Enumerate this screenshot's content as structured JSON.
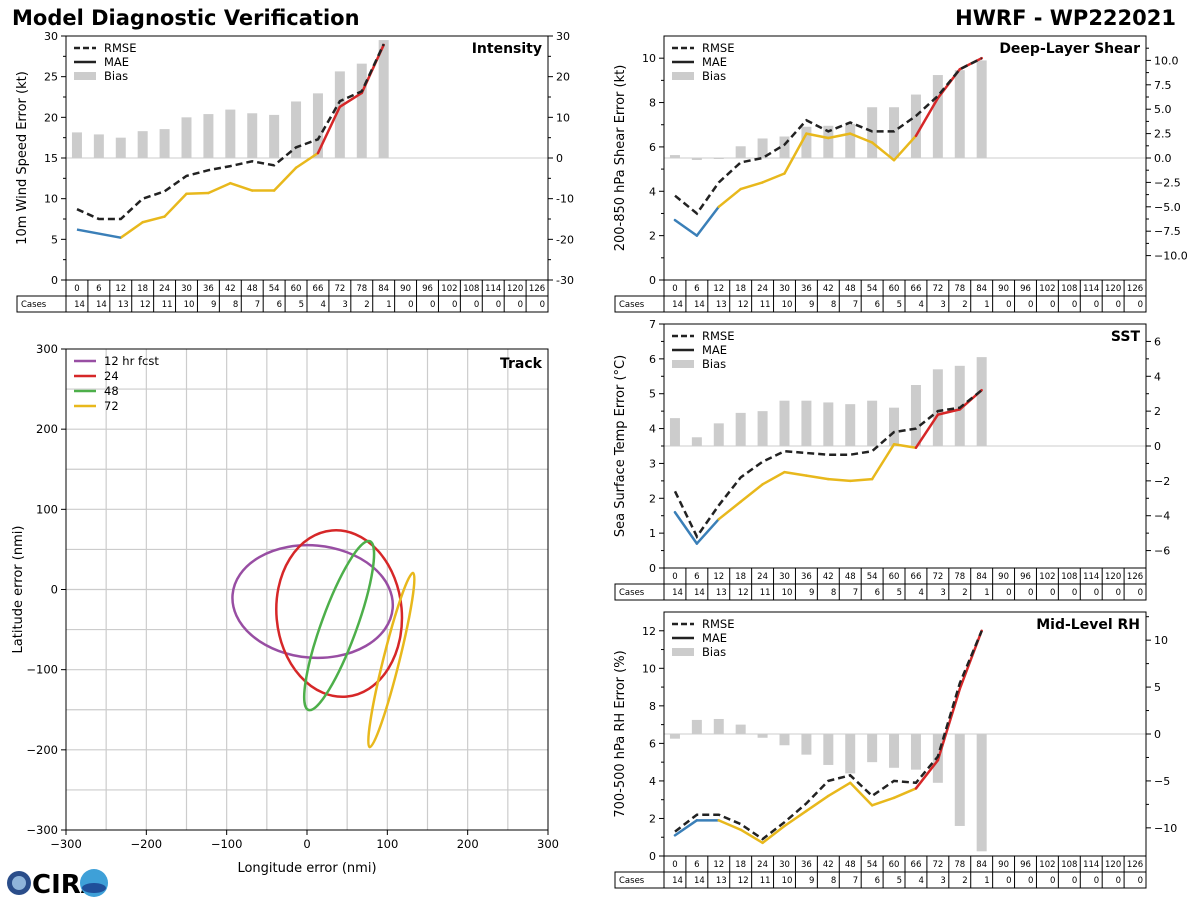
{
  "header": {
    "title": "Model Diagnostic Verification",
    "model_storm": "HWRF - WP222021"
  },
  "footer": {
    "logo_text": "CIRA"
  },
  "colors": {
    "rmse": "#222222",
    "mae_blue": "#3a7fb8",
    "mae_yellow": "#e8b81c",
    "mae_red": "#d62728",
    "bias": "#cccccc",
    "grid": "#cccccc",
    "track_12": "#984ea3",
    "track_24": "#d62728",
    "track_48": "#4daf4a",
    "track_72": "#e8b81c"
  },
  "table": {
    "hour_row_label": "",
    "cases_label": "Cases",
    "hours": [
      "0",
      "6",
      "12",
      "18",
      "24",
      "30",
      "36",
      "42",
      "48",
      "54",
      "60",
      "66",
      "72",
      "78",
      "84",
      "90",
      "96",
      "102",
      "108",
      "114",
      "120",
      "126"
    ],
    "cases": [
      "14",
      "14",
      "13",
      "12",
      "11",
      "10",
      "9",
      "8",
      "7",
      "6",
      "5",
      "4",
      "3",
      "2",
      "1",
      "0",
      "0",
      "0",
      "0",
      "0",
      "0",
      "0"
    ]
  },
  "legend_labels": {
    "rmse": "RMSE",
    "mae": "MAE",
    "bias": "Bias"
  },
  "chart_data": [
    {
      "type": "line",
      "title": "Intensity",
      "ylabel": "10m Wind Speed Error (kt)",
      "ylim": [
        0,
        30
      ],
      "yticks": [
        "0",
        "5",
        "10",
        "15",
        "20",
        "25",
        "30"
      ],
      "y2lim": [
        -30,
        30
      ],
      "y2ticks": [
        "-30",
        "-20",
        "-10",
        "0",
        "10",
        "20",
        "30"
      ],
      "x": [
        0,
        6,
        12,
        18,
        24,
        30,
        36,
        42,
        48,
        54,
        60,
        66,
        72,
        78,
        84
      ],
      "series": [
        {
          "name": "RMSE",
          "values": [
            8.7,
            7.5,
            7.5,
            10.0,
            10.9,
            12.8,
            13.5,
            14.0,
            14.6,
            14.1,
            16.3,
            17.3,
            22.0,
            23.2,
            29.0
          ]
        },
        {
          "name": "MAE",
          "values": [
            6.2,
            null,
            5.2,
            7.1,
            7.8,
            10.6,
            10.7,
            11.9,
            11.0,
            11.0,
            13.8,
            15.6,
            21.3,
            23.0,
            28.9
          ]
        },
        {
          "name": "Bias",
          "values": [
            6.3,
            5.8,
            5.0,
            6.6,
            7.1,
            10.0,
            10.8,
            11.9,
            11.0,
            10.6,
            13.9,
            15.9,
            21.3,
            23.2,
            29.0
          ]
        }
      ]
    },
    {
      "type": "line",
      "title": "Deep-Layer Shear",
      "ylabel": "200-850 hPa Shear Error (kt)",
      "ylim": [
        0,
        11
      ],
      "yticks": [
        "0",
        "2",
        "4",
        "6",
        "8",
        "10"
      ],
      "y2lim": [
        -12.5,
        12.5
      ],
      "y2ticks": [
        "−10.0",
        "−7.5",
        "−5.0",
        "−2.5",
        "0.0",
        "2.5",
        "5.0",
        "7.5",
        "10.0"
      ],
      "x": [
        0,
        6,
        12,
        18,
        24,
        30,
        36,
        42,
        48,
        54,
        60,
        66,
        72,
        78,
        84
      ],
      "series": [
        {
          "name": "RMSE",
          "values": [
            3.8,
            3.0,
            4.4,
            5.3,
            5.5,
            6.1,
            7.2,
            6.7,
            7.1,
            6.7,
            6.7,
            7.4,
            8.3,
            9.5,
            10.0
          ]
        },
        {
          "name": "MAE",
          "values": [
            2.7,
            2.0,
            3.3,
            4.1,
            4.4,
            4.8,
            6.6,
            6.4,
            6.6,
            6.2,
            5.4,
            6.5,
            8.2,
            9.5,
            10.0
          ]
        },
        {
          "name": "Bias",
          "values": [
            0.3,
            -0.2,
            0.0,
            1.2,
            2.0,
            2.2,
            3.2,
            3.3,
            3.5,
            5.2,
            5.2,
            6.5,
            8.5,
            9.0,
            10.0
          ]
        }
      ]
    },
    {
      "type": "line",
      "title": "SST",
      "ylabel": "Sea Surface Temp Error (°C)",
      "ylim": [
        0,
        7
      ],
      "yticks": [
        "0",
        "1",
        "2",
        "3",
        "4",
        "5",
        "6",
        "7"
      ],
      "y2lim": [
        -7,
        7
      ],
      "y2ticks": [
        "−6",
        "−4",
        "−2",
        "0",
        "2",
        "4",
        "6"
      ],
      "x": [
        0,
        6,
        12,
        18,
        24,
        30,
        36,
        42,
        48,
        54,
        60,
        66,
        72,
        78,
        84
      ],
      "series": [
        {
          "name": "RMSE",
          "values": [
            2.2,
            0.9,
            1.8,
            2.6,
            3.05,
            3.35,
            3.3,
            3.25,
            3.25,
            3.35,
            3.9,
            4.0,
            4.5,
            4.6,
            5.1
          ]
        },
        {
          "name": "MAE",
          "values": [
            1.6,
            0.7,
            1.4,
            1.9,
            2.4,
            2.75,
            2.65,
            2.55,
            2.5,
            2.55,
            3.55,
            3.45,
            4.4,
            4.55,
            5.1
          ]
        },
        {
          "name": "Bias",
          "values": [
            1.6,
            0.5,
            1.3,
            1.9,
            2.0,
            2.6,
            2.6,
            2.5,
            2.4,
            2.6,
            2.2,
            3.5,
            4.4,
            4.6,
            5.1
          ]
        }
      ]
    },
    {
      "type": "line",
      "title": "Mid-Level RH",
      "ylabel": "700-500 hPa RH Error (%)",
      "ylim": [
        0,
        13
      ],
      "yticks": [
        "0",
        "2",
        "4",
        "6",
        "8",
        "10",
        "12"
      ],
      "y2lim": [
        -13,
        13
      ],
      "y2ticks": [
        "−10",
        "−5",
        "0",
        "5",
        "10"
      ],
      "x": [
        0,
        6,
        12,
        18,
        24,
        30,
        36,
        42,
        48,
        54,
        60,
        66,
        72,
        78,
        84
      ],
      "series": [
        {
          "name": "RMSE",
          "values": [
            1.3,
            2.2,
            2.2,
            1.7,
            0.9,
            1.8,
            2.8,
            4.0,
            4.3,
            3.2,
            4.0,
            3.9,
            5.3,
            9.2,
            12.0
          ]
        },
        {
          "name": "MAE",
          "values": [
            1.1,
            1.9,
            1.9,
            1.4,
            0.7,
            1.6,
            2.4,
            3.2,
            3.9,
            2.7,
            3.1,
            3.6,
            5.1,
            8.9,
            12.0
          ]
        },
        {
          "name": "Bias",
          "values": [
            -0.5,
            1.5,
            1.6,
            1.0,
            -0.4,
            -1.2,
            -2.2,
            -3.3,
            -4.2,
            -3.0,
            -3.6,
            -3.8,
            -5.2,
            -9.8,
            -12.5
          ]
        }
      ]
    },
    {
      "type": "line",
      "title": "Track",
      "xlabel": "Longitude error (nmi)",
      "ylabel": "Latitude error (nmi)",
      "xlim": [
        -300,
        300
      ],
      "ylim": [
        -300,
        300
      ],
      "xticks": [
        "−300",
        "−200",
        "−100",
        "0",
        "100",
        "200",
        "300"
      ],
      "yticks": [
        "−300",
        "−200",
        "−100",
        "0",
        "100",
        "200",
        "300"
      ],
      "series": [
        {
          "name": "12 hr fcst",
          "ellipse": {
            "cx": 7,
            "cy": -15,
            "rx": 100,
            "ry": 70,
            "angle_deg": 5
          }
        },
        {
          "name": "24",
          "ellipse": {
            "cx": 40,
            "cy": -30,
            "rx": 78,
            "ry": 104,
            "angle_deg": -5
          }
        },
        {
          "name": "48",
          "ellipse": {
            "cx": 40,
            "cy": -45,
            "rx": 22,
            "ry": 112,
            "angle_deg": 20
          }
        },
        {
          "name": "72",
          "ellipse": {
            "cx": 105,
            "cy": -88,
            "rx": 10,
            "ry": 112,
            "angle_deg": 14
          }
        }
      ]
    }
  ]
}
